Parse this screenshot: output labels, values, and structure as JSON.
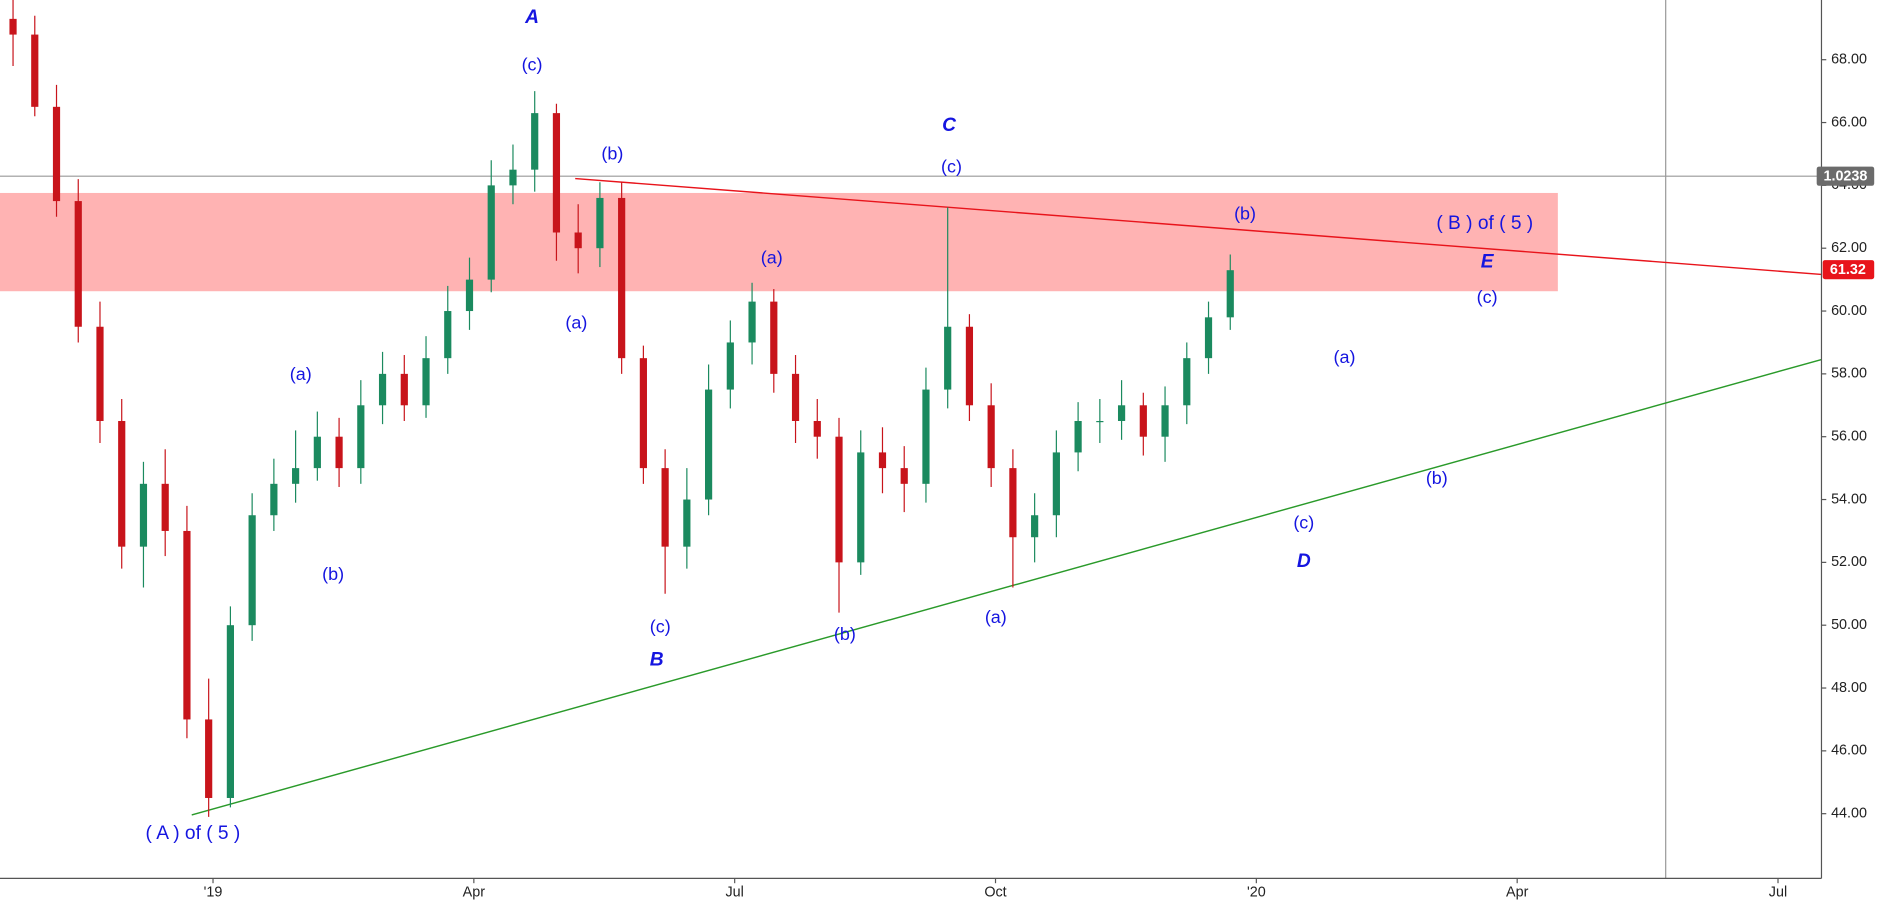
{
  "chart_data": {
    "type": "candlestick",
    "up_color": "#1b8a5f",
    "down_color": "#c8141b",
    "xlim": [
      -2.45,
      18.5
    ],
    "xticks": [
      {
        "value": 0,
        "label": "'19"
      },
      {
        "value": 3,
        "label": "Apr"
      },
      {
        "value": 6,
        "label": "Jul"
      },
      {
        "value": 9,
        "label": "Oct"
      },
      {
        "value": 12,
        "label": "'20"
      },
      {
        "value": 15,
        "label": "Apr"
      },
      {
        "value": 18,
        "label": "Jul"
      }
    ],
    "ylim": [
      41.94,
      69.9
    ],
    "yticks": [
      {
        "value": 44,
        "label": "44.00"
      },
      {
        "value": 46,
        "label": "46.00"
      },
      {
        "value": 48,
        "label": "48.00"
      },
      {
        "value": 50,
        "label": "50.00"
      },
      {
        "value": 52,
        "label": "52.00"
      },
      {
        "value": 54,
        "label": "54.00"
      },
      {
        "value": 56,
        "label": "56.00"
      },
      {
        "value": 58,
        "label": "58.00"
      },
      {
        "value": 60,
        "label": "60.00"
      },
      {
        "value": 62,
        "label": "62.00"
      },
      {
        "value": 64,
        "label": "64.00"
      },
      {
        "value": 66,
        "label": "66.00"
      },
      {
        "value": 68,
        "label": "68.00"
      }
    ],
    "price_labels": [
      "1.0238",
      "61.32"
    ],
    "annotations": [
      "A",
      "(c)",
      "(b)",
      "(a)",
      "(c)",
      "B",
      "(a)",
      "(b)",
      "C",
      "(c)",
      "(a)",
      "(b)",
      "( B ) of ( 5 )",
      "E",
      "(c)",
      "(a)",
      "(b)",
      "(c)",
      "D",
      "(a)",
      "(b)",
      "( A ) of ( 5 )"
    ],
    "candles": {
      "x": [
        -2.3,
        -2.05,
        -1.8,
        -1.55,
        -1.3,
        -1.05,
        -0.8,
        -0.55,
        -0.3,
        -0.05,
        0.2,
        0.45,
        0.7,
        0.95,
        1.2,
        1.45,
        1.7,
        1.95,
        2.2,
        2.45,
        2.7,
        2.95,
        3.2,
        3.45,
        3.7,
        3.95,
        4.2,
        4.45,
        4.7,
        4.95,
        5.2,
        5.45,
        5.7,
        5.95,
        6.2,
        6.45,
        6.7,
        6.95,
        7.2,
        7.45,
        7.7,
        7.95,
        8.2,
        8.45,
        8.7,
        8.95,
        9.2,
        9.45,
        9.7,
        9.95,
        10.2,
        10.45,
        10.7,
        10.95,
        11.2,
        11.45,
        11.7
      ],
      "open": [
        69.3,
        68.8,
        66.5,
        63.5,
        59.5,
        56.5,
        52.5,
        54.5,
        53,
        47,
        44.5,
        50,
        53.5,
        54.5,
        55,
        56,
        55,
        57,
        58,
        57,
        58.5,
        60,
        61,
        64,
        64.5,
        66.3,
        62.5,
        62,
        63.6,
        58.5,
        55,
        52.5,
        54,
        57.5,
        59,
        60.3,
        58,
        56.5,
        56,
        52,
        55.5,
        55,
        54.5,
        57.5,
        59.5,
        57,
        55,
        52.8,
        53.5,
        55.5,
        56.5,
        56.5,
        57,
        56,
        57,
        58.5,
        59.8
      ],
      "high": [
        70.0,
        69.4,
        67.2,
        64.2,
        60.3,
        57.2,
        55.2,
        55.6,
        53.8,
        48.3,
        50.6,
        54.2,
        55.3,
        56.2,
        56.8,
        56.6,
        57.8,
        58.7,
        58.6,
        59.2,
        60.8,
        61.7,
        64.8,
        65.3,
        67.0,
        66.6,
        63.4,
        64.1,
        64.1,
        58.9,
        55.6,
        55.0,
        58.3,
        59.7,
        60.9,
        60.7,
        58.6,
        57.2,
        56.6,
        56.2,
        56.3,
        55.7,
        58.2,
        63.3,
        59.9,
        57.7,
        55.6,
        54.2,
        56.2,
        57.1,
        57.2,
        57.8,
        57.4,
        57.6,
        59.0,
        60.3,
        61.8
      ],
      "low": [
        67.8,
        66.2,
        63.0,
        59.0,
        55.8,
        51.8,
        51.2,
        52.2,
        46.4,
        43.9,
        44.2,
        49.5,
        53.0,
        53.9,
        54.6,
        54.4,
        54.5,
        56.4,
        56.5,
        56.6,
        58.0,
        59.4,
        60.6,
        63.4,
        63.8,
        61.6,
        61.2,
        61.4,
        58.0,
        54.5,
        51.0,
        51.8,
        53.5,
        56.9,
        58.3,
        57.4,
        55.8,
        55.3,
        50.4,
        51.6,
        54.2,
        53.6,
        53.9,
        56.9,
        56.5,
        54.4,
        51.2,
        52.0,
        52.8,
        54.9,
        55.8,
        55.9,
        55.4,
        55.2,
        56.4,
        58.0,
        59.4
      ],
      "close": [
        68.8,
        66.5,
        63.5,
        59.5,
        56.5,
        52.5,
        54.5,
        53,
        47,
        44.5,
        50,
        53.5,
        54.5,
        55,
        56,
        55,
        57,
        58,
        57,
        58.5,
        60,
        61,
        64,
        64.5,
        66.3,
        62.5,
        62,
        63.6,
        58.5,
        55,
        52.5,
        54,
        57.5,
        59,
        60.3,
        58,
        56.5,
        56,
        52,
        55.5,
        55,
        54.5,
        57.5,
        59.5,
        57,
        55,
        52.8,
        53.5,
        55.5,
        56.5,
        56.5,
        57,
        56,
        57,
        58.5,
        59.8,
        61.3
      ]
    }
  }
}
